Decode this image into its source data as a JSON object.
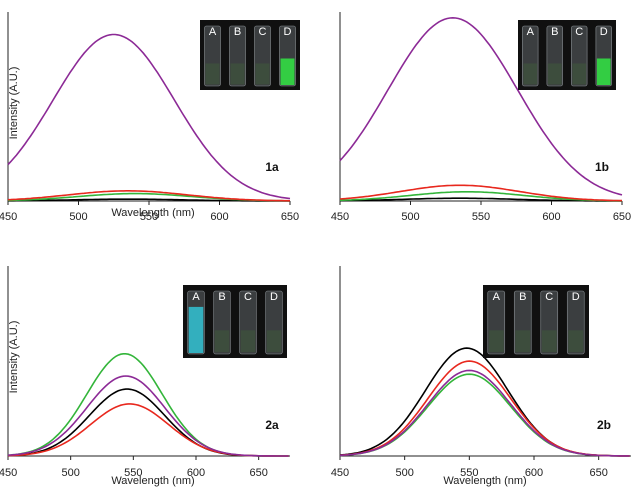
{
  "colors": {
    "A": "#000000",
    "B": "#e8281e",
    "C": "#33b53a",
    "D": "#8c2a96",
    "axis": "#222222",
    "inset_bg": "#101010",
    "vial_glass": "#5e6468",
    "glow_green": "#33dd44",
    "glow_cyan": "#33bbcc"
  },
  "chart_data": [
    {
      "type": "line",
      "panel_label": "1a",
      "xlabel": "Wavelength (nm)",
      "ylabel": "Intensity (A.U.)",
      "xlim": [
        450,
        650
      ],
      "xticks": [
        450,
        500,
        550,
        600,
        650
      ],
      "ylim": [
        0,
        100
      ],
      "y_ticks_shown": false,
      "inset": {
        "vial_labels": [
          "A",
          "B",
          "C",
          "D"
        ],
        "glow": {
          "D": "green"
        }
      },
      "series": [
        {
          "name": "A",
          "peak": 535,
          "height": 1,
          "width": 40
        },
        {
          "name": "B",
          "peak": 535,
          "height": 5.5,
          "width": 42
        },
        {
          "name": "C",
          "peak": 540,
          "height": 4,
          "width": 40
        },
        {
          "name": "D",
          "peak": 525,
          "height": 90,
          "width": 43
        }
      ]
    },
    {
      "type": "line",
      "panel_label": "1b",
      "xlabel": "",
      "ylabel": "",
      "xlim": [
        450,
        650
      ],
      "xticks": [
        450,
        500,
        550,
        600,
        650
      ],
      "ylim": [
        0,
        100
      ],
      "y_ticks_shown": false,
      "inset": {
        "vial_labels": [
          "A",
          "B",
          "C",
          "D"
        ],
        "glow": {
          "D": "green"
        }
      },
      "series": [
        {
          "name": "A",
          "peak": 535,
          "height": 1.5,
          "width": 40
        },
        {
          "name": "B",
          "peak": 535,
          "height": 8.5,
          "width": 42
        },
        {
          "name": "C",
          "peak": 540,
          "height": 5,
          "width": 40
        },
        {
          "name": "D",
          "peak": 530,
          "height": 99,
          "width": 46
        }
      ]
    },
    {
      "type": "line",
      "panel_label": "2a",
      "xlabel": "Wavelength (nm)",
      "ylabel": "Intensity (A.U.)",
      "xlim": [
        450,
        675
      ],
      "xticks": [
        450,
        500,
        550,
        600,
        650
      ],
      "ylim": [
        0,
        100
      ],
      "y_ticks_shown": false,
      "inset": {
        "vial_labels": [
          "A",
          "B",
          "C",
          "D"
        ],
        "glow": {
          "A": "cyan"
        }
      },
      "series": [
        {
          "name": "A",
          "peak": 545,
          "height": 36,
          "width": 30
        },
        {
          "name": "B",
          "peak": 547,
          "height": 28,
          "width": 31
        },
        {
          "name": "C",
          "peak": 543,
          "height": 55,
          "width": 30
        },
        {
          "name": "D",
          "peak": 544,
          "height": 43,
          "width": 31
        }
      ]
    },
    {
      "type": "line",
      "panel_label": "2b",
      "xlabel": "Wavelength (nm)",
      "ylabel": "",
      "xlim": [
        450,
        675
      ],
      "xticks": [
        450,
        500,
        550,
        600,
        650
      ],
      "ylim": [
        0,
        100
      ],
      "y_ticks_shown": false,
      "inset": {
        "vial_labels": [
          "A",
          "B",
          "C",
          "D"
        ],
        "glow": {}
      },
      "series": [
        {
          "name": "A",
          "peak": 548,
          "height": 58,
          "width": 32
        },
        {
          "name": "B",
          "peak": 550,
          "height": 51,
          "width": 32
        },
        {
          "name": "C",
          "peak": 550,
          "height": 44,
          "width": 32
        },
        {
          "name": "D",
          "peak": 550,
          "height": 46,
          "width": 32
        }
      ]
    }
  ]
}
